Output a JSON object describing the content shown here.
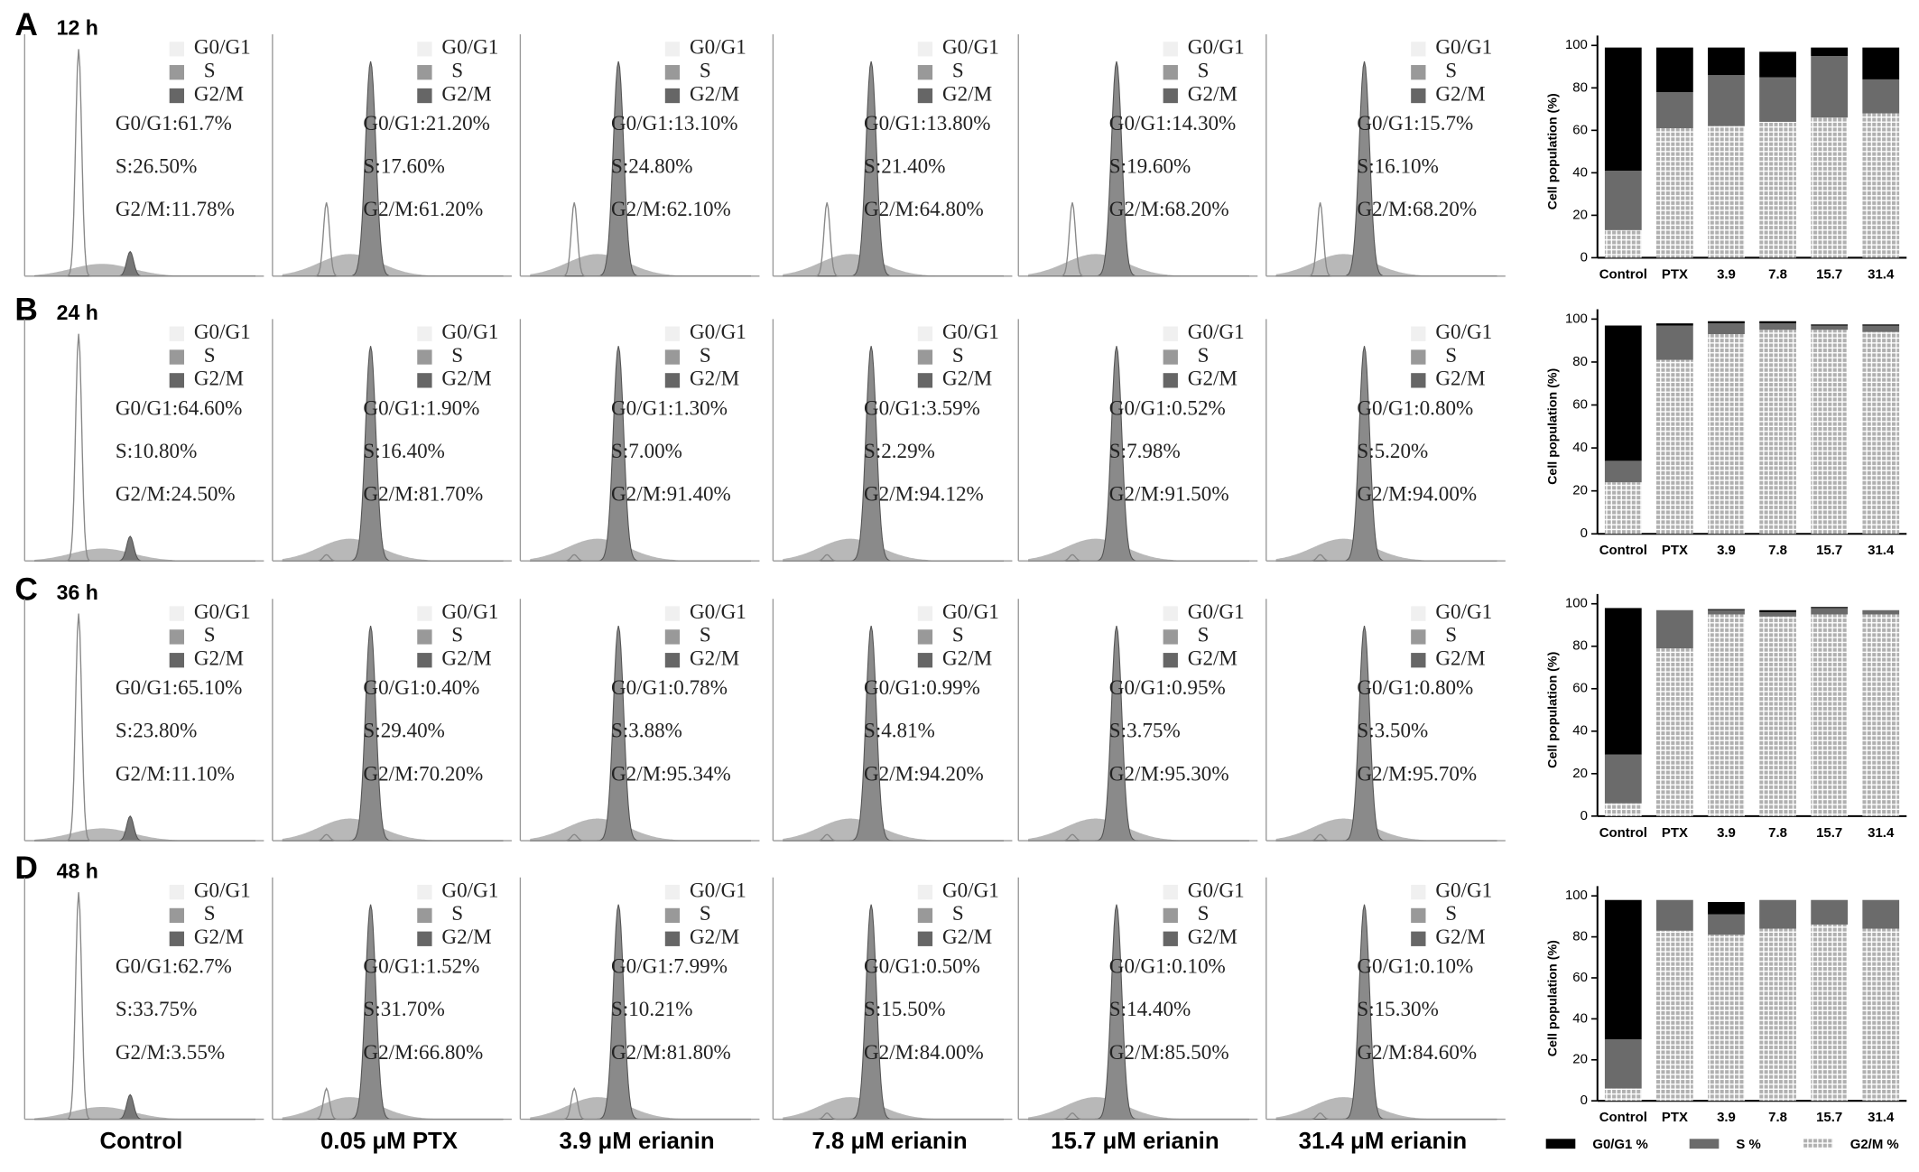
{
  "panels": [
    {
      "label": "A",
      "time": "12 h",
      "stats": [
        [
          "G0/G1:61.7%",
          "S:26.50%",
          "G2/M:11.78%"
        ],
        [
          "G0/G1:21.20%",
          "S:17.60%",
          "G2/M:61.20%"
        ],
        [
          "G0/G1:13.10%",
          "S:24.80%",
          "G2/M:62.10%"
        ],
        [
          "G0/G1:13.80%",
          "S:21.40%",
          "G2/M:64.80%"
        ],
        [
          "G0/G1:14.30%",
          "S:19.60%",
          "G2/M:68.20%"
        ],
        [
          "G0/G1:15.7%",
          "S:16.10%",
          "G2/M:68.20%"
        ]
      ]
    },
    {
      "label": "B",
      "time": "24 h",
      "stats": [
        [
          "G0/G1:64.60%",
          "S:10.80%",
          "G2/M:24.50%"
        ],
        [
          "G0/G1:1.90%",
          "S:16.40%",
          "G2/M:81.70%"
        ],
        [
          "G0/G1:1.30%",
          "S:7.00%",
          "G2/M:91.40%"
        ],
        [
          "G0/G1:3.59%",
          "S:2.29%",
          "G2/M:94.12%"
        ],
        [
          "G0/G1:0.52%",
          "S:7.98%",
          "G2/M:91.50%"
        ],
        [
          "G0/G1:0.80%",
          "S:5.20%",
          "G2/M:94.00%"
        ]
      ]
    },
    {
      "label": "C",
      "time": "36 h",
      "stats": [
        [
          "G0/G1:65.10%",
          "S:23.80%",
          "G2/M:11.10%"
        ],
        [
          "G0/G1:0.40%",
          "S:29.40%",
          "G2/M:70.20%"
        ],
        [
          "G0/G1:0.78%",
          "S:3.88%",
          "G2/M:95.34%"
        ],
        [
          "G0/G1:0.99%",
          "S:4.81%",
          "G2/M:94.20%"
        ],
        [
          "G0/G1:0.95%",
          "S:3.75%",
          "G2/M:95.30%"
        ],
        [
          "G0/G1:0.80%",
          "S:3.50%",
          "G2/M:95.70%"
        ]
      ]
    },
    {
      "label": "D",
      "time": "48 h",
      "stats": [
        [
          "G0/G1:62.7%",
          "S:33.75%",
          "G2/M:3.55%"
        ],
        [
          "G0/G1:1.52%",
          "S:31.70%",
          "G2/M:66.80%"
        ],
        [
          "G0/G1:7.99%",
          "S:10.21%",
          "G2/M:81.80%"
        ],
        [
          "G0/G1:0.50%",
          "S:15.50%",
          "G2/M:84.00%"
        ],
        [
          "G0/G1:0.10%",
          "S:14.40%",
          "G2/M:85.50%"
        ],
        [
          "G0/G1:0.10%",
          "S:15.30%",
          "G2/M:84.60%"
        ]
      ]
    }
  ],
  "histogram_legend": [
    "G0/G1",
    "S",
    "G2/M"
  ],
  "conditions": [
    "Control",
    "0.05 μM PTX",
    "3.9 μM erianin",
    "7.8 μM erianin",
    "15.7 μM erianin",
    "31.4 μM erianin"
  ],
  "chart_data": [
    {
      "type": "bar",
      "stacked": true,
      "categories": [
        "Control",
        "PTX",
        "3.9",
        "7.8",
        "15.7",
        "31.4"
      ],
      "ylabel": "Cell population (%)",
      "ylim": [
        0,
        100
      ],
      "yticks": [
        0,
        20,
        40,
        60,
        80,
        100
      ],
      "series": [
        {
          "color": "#000000",
          "values": [
            58,
            21,
            13,
            12,
            4,
            15
          ]
        },
        {
          "color": "#6b6b6b",
          "values": [
            28,
            17,
            24,
            21,
            29,
            16
          ]
        },
        {
          "color": "#b0b0b0",
          "pattern": "grid",
          "values": [
            13,
            61,
            62,
            64,
            66,
            68
          ]
        }
      ]
    },
    {
      "type": "bar",
      "stacked": true,
      "categories": [
        "Control",
        "PTX",
        "3.9",
        "7.8",
        "15.7",
        "31.4"
      ],
      "ylabel": "Cell population (%)",
      "ylim": [
        0,
        100
      ],
      "yticks": [
        0,
        20,
        40,
        60,
        80,
        100
      ],
      "series": [
        {
          "color": "#000000",
          "values": [
            63,
            1,
            1,
            1,
            0.5,
            0.5
          ]
        },
        {
          "color": "#6b6b6b",
          "values": [
            10,
            16,
            5,
            3,
            2,
            3
          ]
        },
        {
          "color": "#b0b0b0",
          "pattern": "grid",
          "values": [
            24,
            81,
            93,
            95,
            95,
            94
          ]
        }
      ]
    },
    {
      "type": "bar",
      "stacked": true,
      "categories": [
        "Control",
        "PTX",
        "3.9",
        "7.8",
        "15.7",
        "31.4"
      ],
      "ylabel": "Cell population (%)",
      "ylim": [
        0,
        100
      ],
      "yticks": [
        0,
        20,
        40,
        60,
        80,
        100
      ],
      "series": [
        {
          "color": "#000000",
          "values": [
            69,
            0,
            0.5,
            1,
            0.5,
            0
          ]
        },
        {
          "color": "#6b6b6b",
          "values": [
            23,
            18,
            2,
            2,
            3,
            2
          ]
        },
        {
          "color": "#b0b0b0",
          "pattern": "grid",
          "values": [
            6,
            79,
            95,
            94,
            95,
            95
          ]
        }
      ]
    },
    {
      "type": "bar",
      "stacked": true,
      "categories": [
        "Control",
        "PTX",
        "3.9",
        "7.8",
        "15.7",
        "31.4"
      ],
      "ylabel": "Cell population (%)",
      "ylim": [
        0,
        100
      ],
      "yticks": [
        0,
        20,
        40,
        60,
        80,
        100
      ],
      "legend": "bottom",
      "series": [
        {
          "name": "G0/G1 %",
          "color": "#000000",
          "values": [
            68,
            0,
            6,
            0,
            0,
            0
          ]
        },
        {
          "name": "S %",
          "color": "#6b6b6b",
          "values": [
            24,
            15,
            10,
            14,
            12,
            14
          ]
        },
        {
          "name": "G2/M %",
          "color": "#b0b0b0",
          "pattern": "grid",
          "values": [
            6,
            83,
            81,
            84,
            86,
            84
          ]
        }
      ]
    }
  ]
}
